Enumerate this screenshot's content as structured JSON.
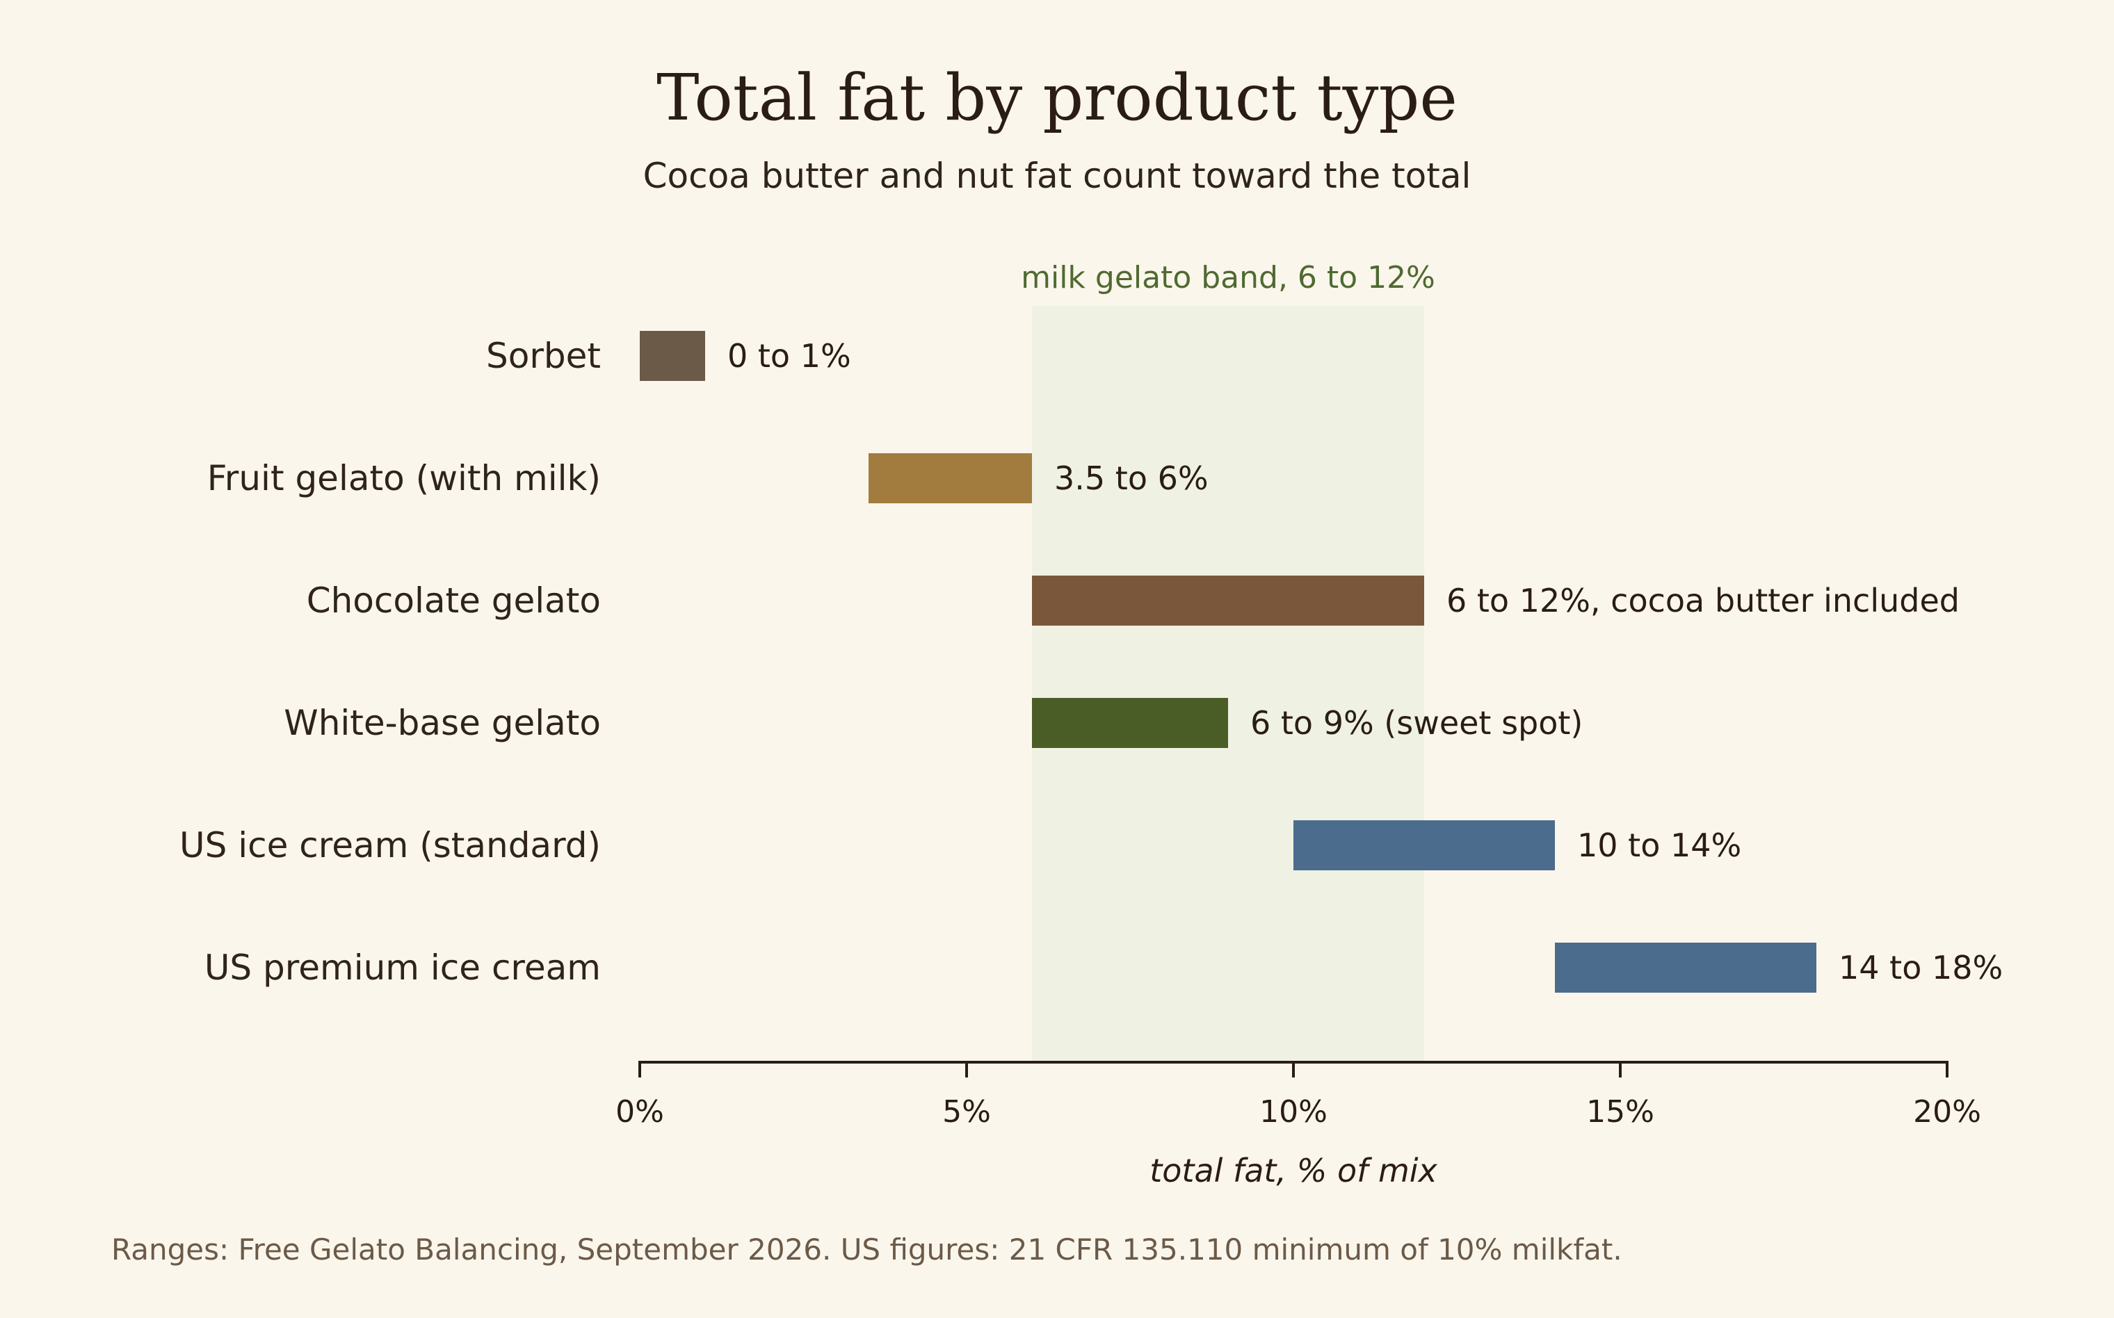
{
  "chart_data": {
    "type": "bar",
    "orientation": "horizontal",
    "title": "Total fat by product type",
    "subtitle": "Cocoa butter and nut fat count toward the total",
    "xlabel": "total fat, % of mix",
    "xlim": [
      0,
      20
    ],
    "xticks": [
      0,
      5,
      10,
      15,
      20
    ],
    "xtick_labels": [
      "0%",
      "5%",
      "10%",
      "15%",
      "20%"
    ],
    "grid": false,
    "band": {
      "start": 6,
      "end": 12,
      "label": "milk gelato band, 6 to 12%",
      "color": "#eff1e3"
    },
    "series": [
      {
        "category": "Sorbet",
        "start": 0,
        "end": 1,
        "label": "0 to 1%",
        "color": "#6b5a48"
      },
      {
        "category": "Fruit gelato (with milk)",
        "start": 3.5,
        "end": 6,
        "label": "3.5 to 6%",
        "color": "#a27b3e"
      },
      {
        "category": "Chocolate gelato",
        "start": 6,
        "end": 12,
        "label": "6 to 12%, cocoa butter included",
        "color": "#7a573a"
      },
      {
        "category": "White-base gelato",
        "start": 6,
        "end": 9,
        "label": "6 to 9% (sweet spot)",
        "color": "#4a5d26"
      },
      {
        "category": "US ice cream (standard)",
        "start": 10,
        "end": 14,
        "label": "10 to 14%",
        "color": "#4b6c8c"
      },
      {
        "category": "US premium ice cream",
        "start": 14,
        "end": 18,
        "label": "14 to 18%",
        "color": "#4b6c8c"
      }
    ],
    "footnote": "Ranges: Free Gelato Balancing, September 2026. US figures: 21 CFR 135.110 minimum of 10% milkfat."
  }
}
